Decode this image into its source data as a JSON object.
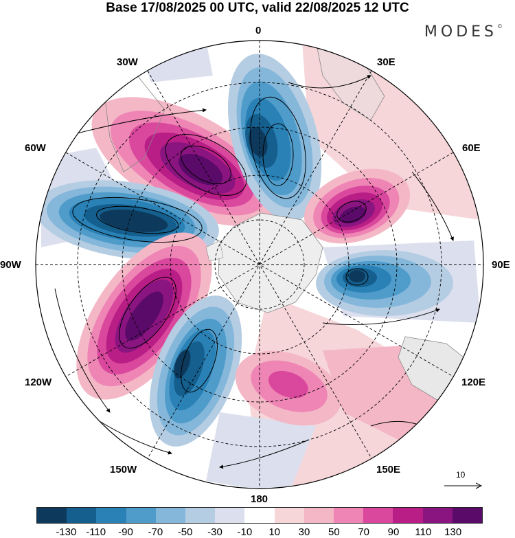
{
  "title": "Base 17/08/2025 00 UTC, valid 22/08/2025 12 UTC",
  "logo": "MODES",
  "logo_mark": "©",
  "longitude_labels": {
    "n0": "0",
    "e30": "30E",
    "e60": "60E",
    "e90": "90E",
    "e120": "120E",
    "e150": "150E",
    "s180": "180",
    "w150": "150W",
    "w120": "120W",
    "w90": "90W",
    "w60": "60W",
    "w30": "30W"
  },
  "reference_vector_label": "10",
  "colorbar": {
    "colors": [
      "#0d3a5c",
      "#155f8e",
      "#2a81b5",
      "#4f9ccb",
      "#84b7da",
      "#b5cde3",
      "#dcdfee",
      "#ffffff",
      "#f6d6d9",
      "#f4b7c6",
      "#ee85b5",
      "#d9489d",
      "#b91d86",
      "#8a1580",
      "#5a0a68"
    ],
    "tick_labels": [
      "-130",
      "-110",
      "-90",
      "-70",
      "-50",
      "-30",
      "-10",
      "10",
      "30",
      "50",
      "70",
      "90",
      "110",
      "130"
    ]
  }
}
